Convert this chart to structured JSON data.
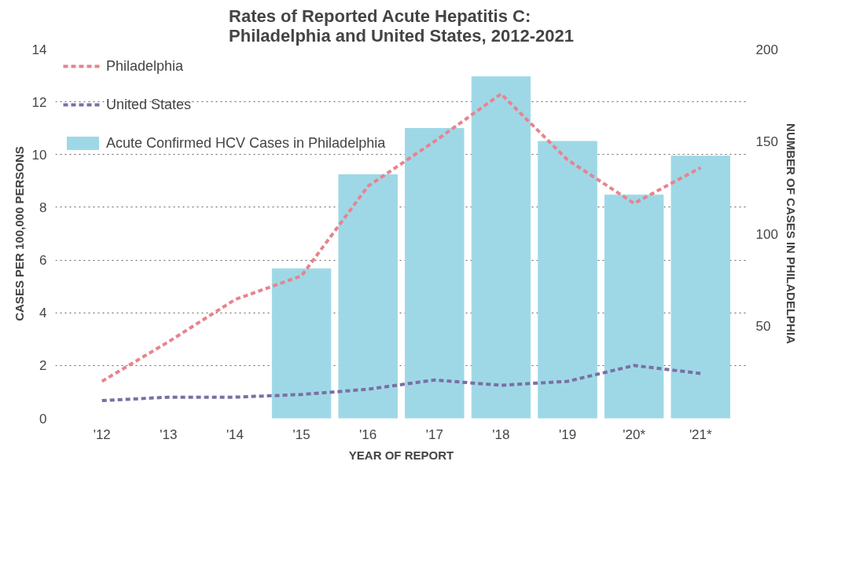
{
  "chart_data": {
    "type": "line",
    "title": "Rates of Reported Acute Hepatitis C:\nPhiladelphia and United States, 2012-2021",
    "xlabel": "YEAR OF REPORT",
    "ylabel": "CASES PER 100,000 PERSONS",
    "y2label": "NUMBER OF CASES IN PHILADELPHIA",
    "categories": [
      "'12",
      "'13",
      "'14",
      "'15",
      "'16",
      "'17",
      "'18",
      "'19",
      "'20*",
      "'21*"
    ],
    "series": [
      {
        "name": "Acute Confirmed HCV Cases in Philadelphia",
        "type": "bar",
        "axis": "y2",
        "color": "#9ed8e6",
        "values": [
          null,
          null,
          null,
          81,
          132,
          157,
          185,
          150,
          121,
          142
        ]
      },
      {
        "name": "Philadelphia",
        "color": "#e8838e",
        "line_style": "dashed",
        "values": [
          1.4,
          2.9,
          4.5,
          5.4,
          8.8,
          10.5,
          12.3,
          9.8,
          8.15,
          9.5
        ]
      },
      {
        "name": "United States",
        "color": "#7b6fa3",
        "line_style": "dashed",
        "values": [
          0.67,
          0.8,
          0.8,
          0.9,
          1.1,
          1.45,
          1.25,
          1.4,
          2.0,
          1.7
        ]
      }
    ],
    "ylim": [
      0,
      14
    ],
    "yticks": [
      0,
      2,
      4,
      6,
      8,
      10,
      12,
      14
    ],
    "y2lim": [
      0,
      200
    ],
    "y2ticks": [
      50,
      100,
      150,
      200
    ],
    "grid": "y",
    "legend": "top left"
  }
}
